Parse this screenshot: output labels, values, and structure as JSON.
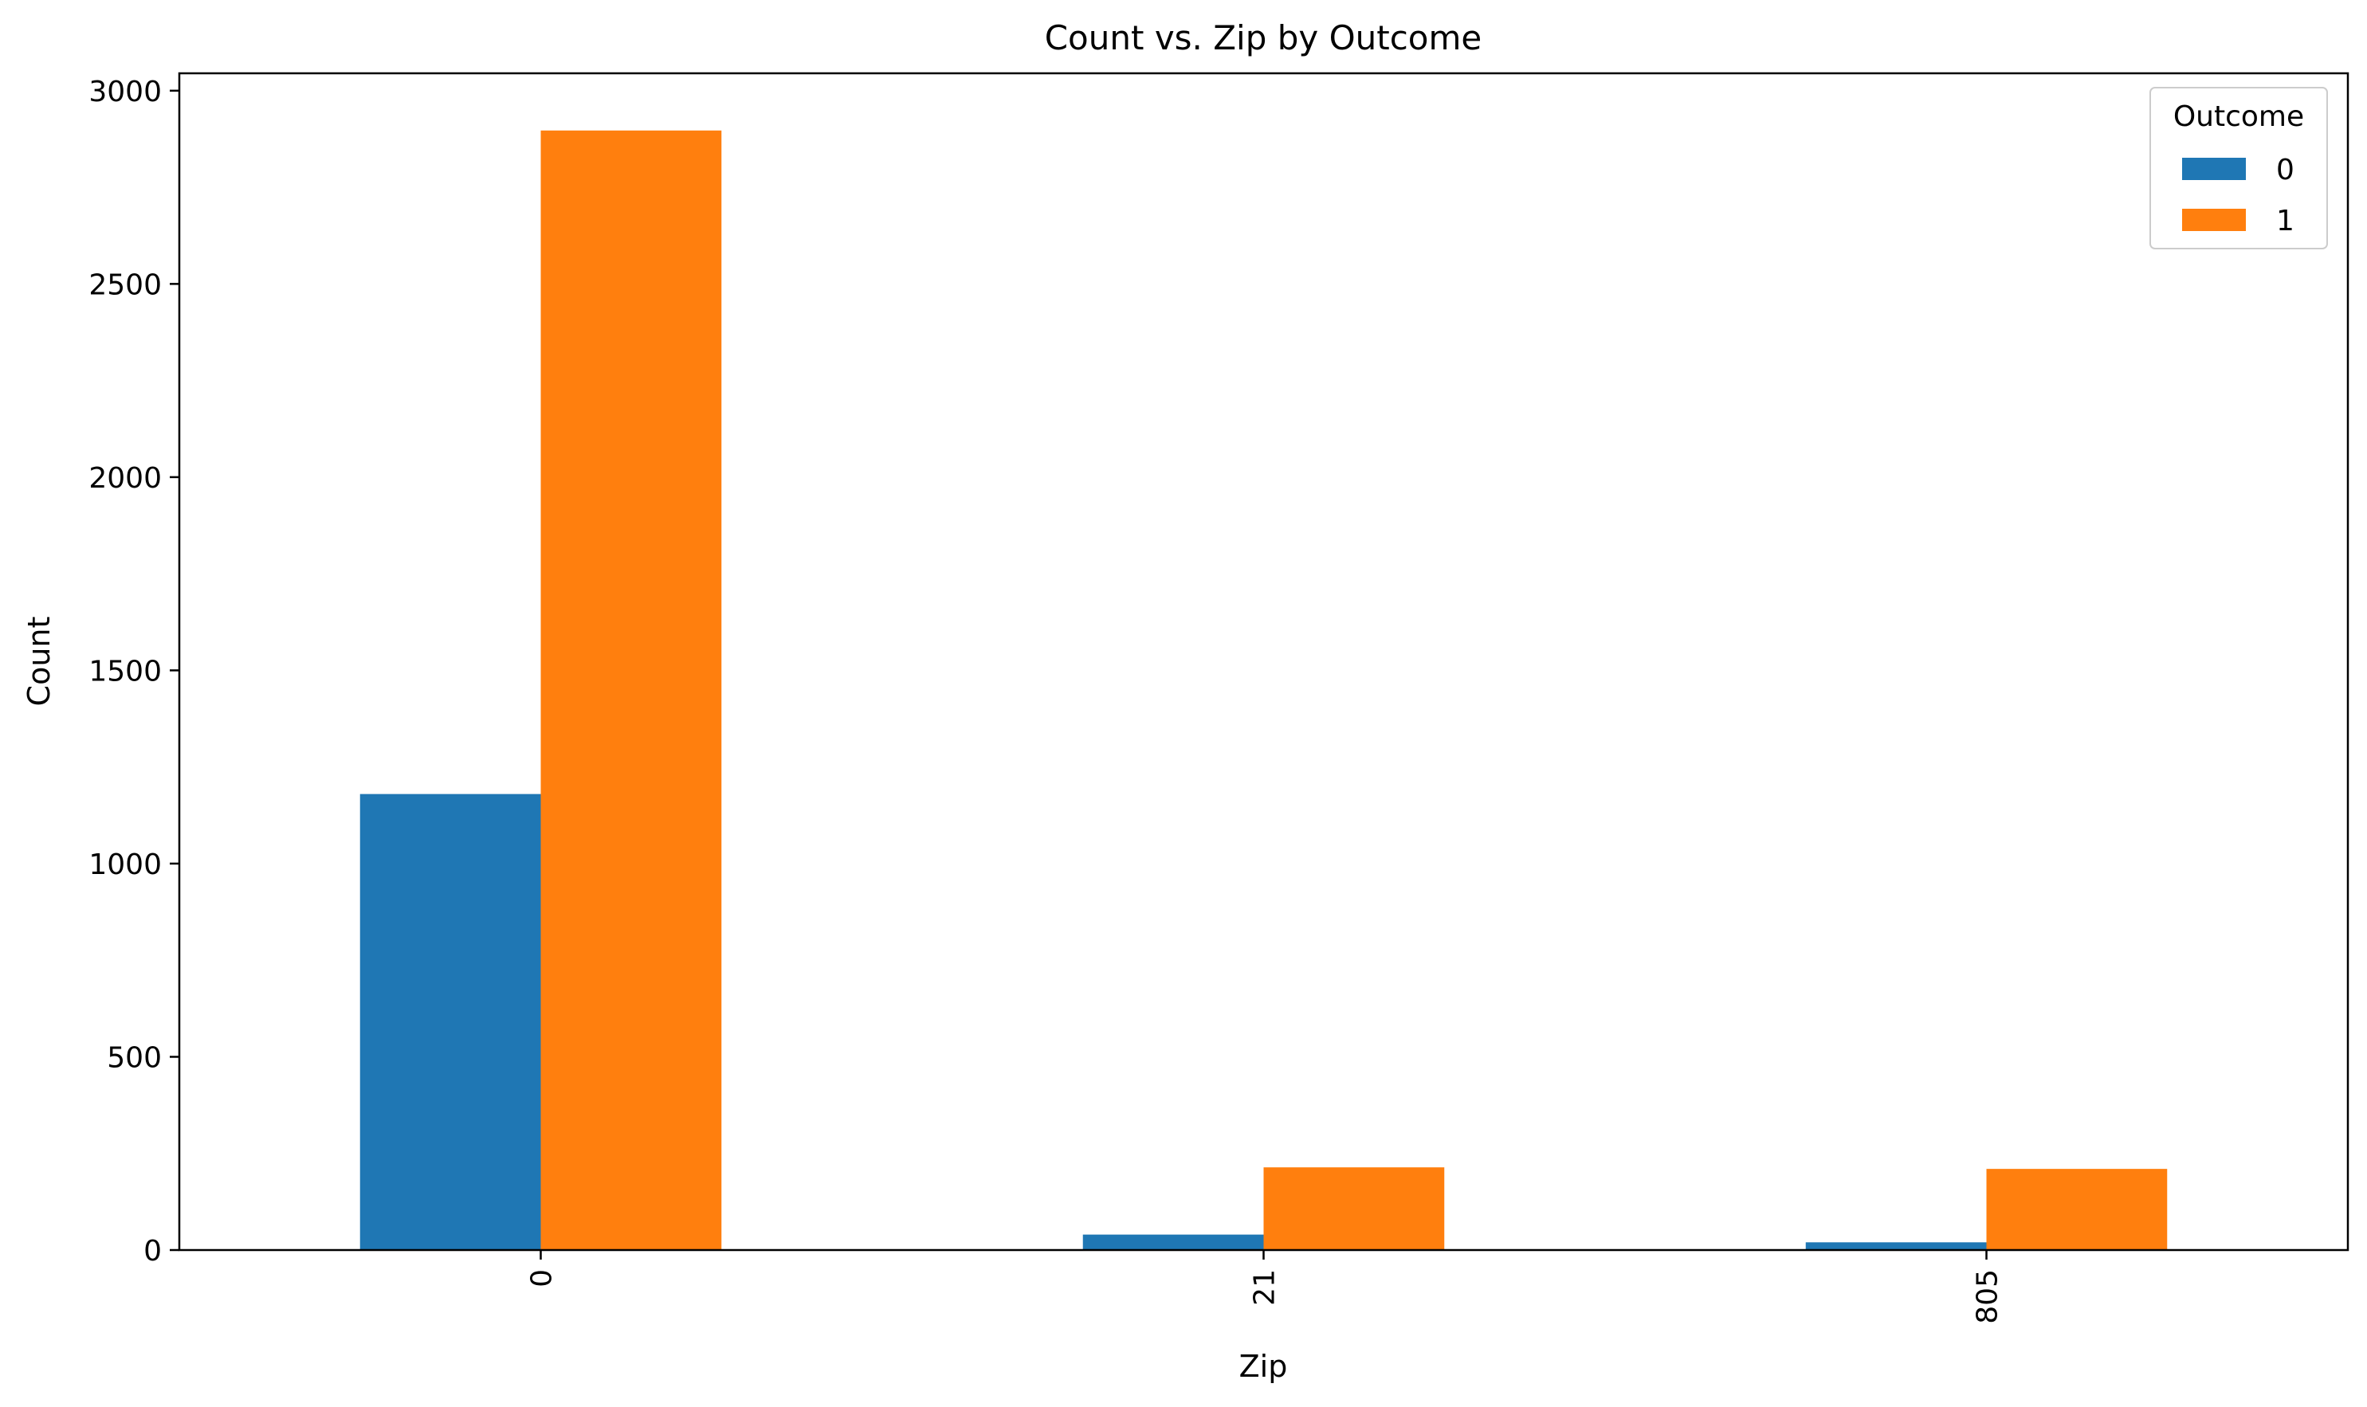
{
  "chart_data": {
    "type": "bar",
    "title": "Count vs. Zip by Outcome",
    "xlabel": "Zip",
    "ylabel": "Count",
    "categories": [
      "0",
      "21",
      "805"
    ],
    "series": [
      {
        "name": "0",
        "color": "#1f77b4",
        "values": [
          1180,
          40,
          20
        ]
      },
      {
        "name": "1",
        "color": "#ff7f0e",
        "values": [
          2897,
          214,
          210
        ]
      }
    ],
    "ylim": [
      0,
      3045
    ],
    "yticks": [
      0,
      500,
      1000,
      1500,
      2000,
      2500,
      3000
    ],
    "legend": {
      "title": "Outcome",
      "position": "top-right"
    },
    "grid": false
  }
}
